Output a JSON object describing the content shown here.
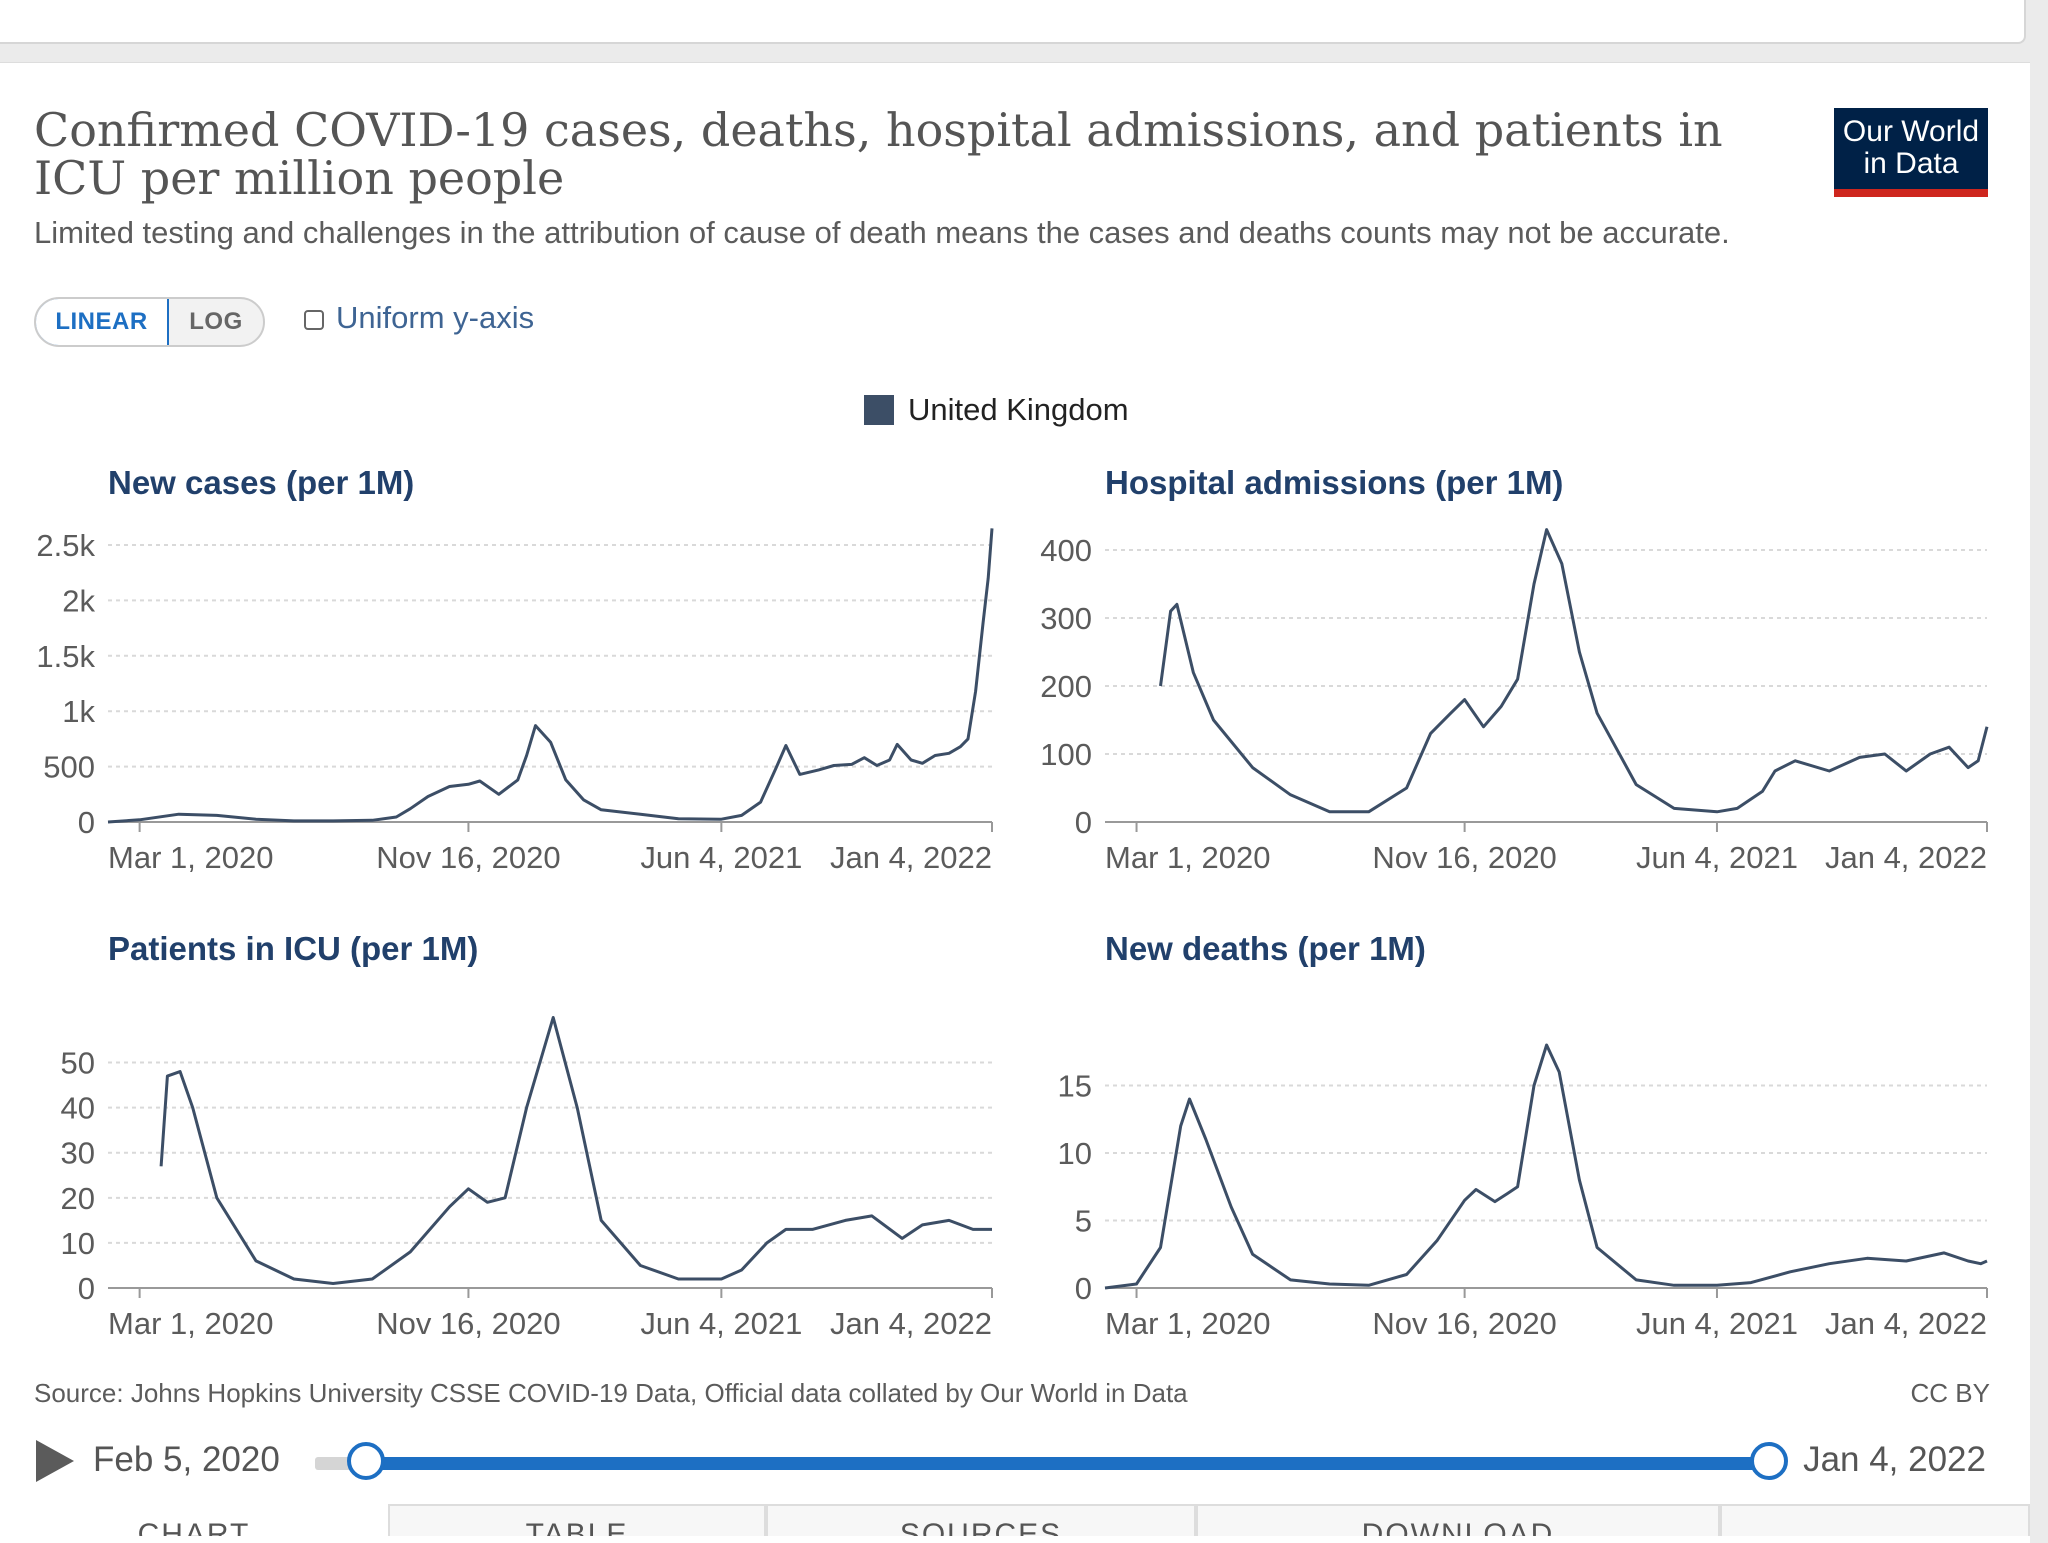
{
  "header": {
    "title": "Confirmed COVID-19 cases, deaths, hospital admissions, and patients in ICU per million people",
    "subtitle": "Limited testing and challenges in the attribution of cause of death means the cases and deaths counts may not be accurate.",
    "logo_line1": "Our World",
    "logo_line2": "in Data",
    "logo_bg": "#002147",
    "logo_accent": "#ce261e"
  },
  "controls": {
    "linear_label": "LINEAR",
    "log_label": "LOG",
    "uniform_label": "Uniform y-axis",
    "uniform_checked": false,
    "accent": "#1d6fc3"
  },
  "legend": {
    "label": "United Kingdom",
    "color": "#3c4e66"
  },
  "chart_data": [
    {
      "type": "line",
      "title": "New cases (per 1M)",
      "x_ticks": [
        "Mar 1, 2020",
        "Nov 16, 2020",
        "Jun 4, 2021",
        "Jan 4, 2022"
      ],
      "xlim": [
        "2020-02-05",
        "2022-01-04"
      ],
      "y_ticks": [
        "0",
        "500",
        "1k",
        "1.5k",
        "2k",
        "2.5k"
      ],
      "y_tick_values": [
        0,
        500,
        1000,
        1500,
        2000,
        2500
      ],
      "ylim": [
        0,
        2500
      ],
      "series": [
        {
          "name": "United Kingdom",
          "x": [
            "2020-02-05",
            "2020-03-01",
            "2020-04-01",
            "2020-05-01",
            "2020-06-01",
            "2020-07-01",
            "2020-08-01",
            "2020-09-01",
            "2020-09-20",
            "2020-10-01",
            "2020-10-15",
            "2020-11-01",
            "2020-11-16",
            "2020-11-25",
            "2020-12-10",
            "2020-12-25",
            "2021-01-01",
            "2021-01-08",
            "2021-01-20",
            "2021-02-01",
            "2021-02-15",
            "2021-03-01",
            "2021-04-01",
            "2021-05-01",
            "2021-06-04",
            "2021-06-20",
            "2021-07-05",
            "2021-07-17",
            "2021-07-25",
            "2021-08-05",
            "2021-08-20",
            "2021-09-01",
            "2021-09-15",
            "2021-09-25",
            "2021-10-05",
            "2021-10-15",
            "2021-10-21",
            "2021-11-01",
            "2021-11-10",
            "2021-11-20",
            "2021-12-01",
            "2021-12-10",
            "2021-12-16",
            "2021-12-22",
            "2021-12-28",
            "2022-01-01",
            "2022-01-04"
          ],
          "values": [
            0,
            20,
            70,
            60,
            25,
            10,
            10,
            15,
            45,
            120,
            230,
            320,
            340,
            370,
            250,
            380,
            600,
            870,
            720,
            380,
            200,
            110,
            70,
            30,
            25,
            60,
            180,
            480,
            690,
            430,
            470,
            510,
            520,
            580,
            510,
            560,
            700,
            560,
            530,
            600,
            620,
            680,
            750,
            1180,
            1800,
            2200,
            2650
          ]
        }
      ]
    },
    {
      "type": "line",
      "title": "Hospital admissions (per 1M)",
      "x_ticks": [
        "Mar 1, 2020",
        "Nov 16, 2020",
        "Jun 4, 2021",
        "Jan 4, 2022"
      ],
      "xlim": [
        "2020-02-05",
        "2022-01-04"
      ],
      "y_ticks": [
        "0",
        "100",
        "200",
        "300",
        "400"
      ],
      "y_tick_values": [
        0,
        100,
        200,
        300,
        400
      ],
      "ylim": [
        0,
        400
      ],
      "series": [
        {
          "name": "United Kingdom",
          "x": [
            "2020-03-20",
            "2020-03-28",
            "2020-04-02",
            "2020-04-15",
            "2020-05-01",
            "2020-06-01",
            "2020-07-01",
            "2020-08-01",
            "2020-09-01",
            "2020-10-01",
            "2020-10-20",
            "2020-11-05",
            "2020-11-16",
            "2020-12-01",
            "2020-12-15",
            "2020-12-28",
            "2021-01-10",
            "2021-01-20",
            "2021-02-01",
            "2021-02-15",
            "2021-03-01",
            "2021-04-01",
            "2021-05-01",
            "2021-06-04",
            "2021-06-20",
            "2021-07-10",
            "2021-07-20",
            "2021-08-05",
            "2021-09-01",
            "2021-09-25",
            "2021-10-15",
            "2021-11-01",
            "2021-11-20",
            "2021-12-05",
            "2021-12-20",
            "2021-12-28",
            "2022-01-04"
          ],
          "values": [
            200,
            310,
            320,
            220,
            150,
            80,
            40,
            15,
            15,
            50,
            130,
            160,
            180,
            140,
            170,
            210,
            350,
            430,
            380,
            250,
            160,
            55,
            20,
            15,
            20,
            45,
            75,
            90,
            75,
            95,
            100,
            75,
            100,
            110,
            80,
            90,
            140
          ]
        }
      ]
    },
    {
      "type": "line",
      "title": "Patients in ICU (per 1M)",
      "x_ticks": [
        "Mar 1, 2020",
        "Nov 16, 2020",
        "Jun 4, 2021",
        "Jan 4, 2022"
      ],
      "xlim": [
        "2020-02-05",
        "2022-01-04"
      ],
      "y_ticks": [
        "0",
        "10",
        "20",
        "30",
        "40",
        "50"
      ],
      "y_tick_values": [
        0,
        10,
        20,
        30,
        40,
        50
      ],
      "ylim": [
        0,
        55
      ],
      "series": [
        {
          "name": "United Kingdom",
          "x": [
            "2020-03-18",
            "2020-03-23",
            "2020-04-02",
            "2020-04-12",
            "2020-05-01",
            "2020-06-01",
            "2020-07-01",
            "2020-08-01",
            "2020-09-01",
            "2020-10-01",
            "2020-11-01",
            "2020-11-16",
            "2020-12-01",
            "2020-12-15",
            "2021-01-01",
            "2021-01-22",
            "2021-02-10",
            "2021-03-01",
            "2021-04-01",
            "2021-05-01",
            "2021-06-04",
            "2021-06-20",
            "2021-07-10",
            "2021-07-25",
            "2021-08-15",
            "2021-09-10",
            "2021-10-01",
            "2021-10-25",
            "2021-11-10",
            "2021-12-01",
            "2021-12-20",
            "2022-01-04"
          ],
          "values": [
            27,
            47,
            48,
            40,
            20,
            6,
            2,
            1,
            2,
            8,
            18,
            22,
            19,
            20,
            40,
            60,
            40,
            15,
            5,
            2,
            2,
            4,
            10,
            13,
            13,
            15,
            16,
            11,
            14,
            15,
            13,
            13
          ]
        }
      ]
    },
    {
      "type": "line",
      "title": "New deaths (per 1M)",
      "x_ticks": [
        "Mar 1, 2020",
        "Nov 16, 2020",
        "Jun 4, 2021",
        "Jan 4, 2022"
      ],
      "xlim": [
        "2020-02-05",
        "2022-01-04"
      ],
      "y_ticks": [
        "0",
        "5",
        "10",
        "15"
      ],
      "y_tick_values": [
        0,
        5,
        10,
        15
      ],
      "ylim": [
        0,
        18
      ],
      "series": [
        {
          "name": "United Kingdom",
          "x": [
            "2020-02-05",
            "2020-03-01",
            "2020-03-20",
            "2020-04-05",
            "2020-04-12",
            "2020-04-25",
            "2020-05-15",
            "2020-06-01",
            "2020-07-01",
            "2020-08-01",
            "2020-09-01",
            "2020-10-01",
            "2020-10-25",
            "2020-11-16",
            "2020-11-25",
            "2020-12-10",
            "2020-12-20",
            "2020-12-28",
            "2021-01-10",
            "2021-01-20",
            "2021-01-30",
            "2021-02-15",
            "2021-03-01",
            "2021-04-01",
            "2021-05-01",
            "2021-06-04",
            "2021-07-01",
            "2021-08-01",
            "2021-09-01",
            "2021-10-01",
            "2021-11-01",
            "2021-12-01",
            "2021-12-20",
            "2021-12-30",
            "2022-01-04"
          ],
          "values": [
            0,
            0.3,
            3,
            12,
            14,
            11,
            6,
            2.5,
            0.6,
            0.3,
            0.2,
            1,
            3.5,
            6.5,
            7.3,
            6.4,
            7,
            7.5,
            15,
            18,
            16,
            8,
            3,
            0.6,
            0.2,
            0.2,
            0.4,
            1.2,
            1.8,
            2.2,
            2.0,
            2.6,
            2.0,
            1.8,
            2.0
          ]
        }
      ]
    }
  ],
  "footer": {
    "source": "Source: Johns Hopkins University CSSE COVID-19 Data, Official data collated by Our World in Data",
    "license": "CC BY"
  },
  "timeline": {
    "start_label": "Feb 5, 2020",
    "end_label": "Jan 4, 2022",
    "start_fraction": 0,
    "end_fraction": 1
  },
  "tabs": [
    "CHART",
    "TABLE",
    "SOURCES",
    "DOWNLOAD",
    ""
  ]
}
